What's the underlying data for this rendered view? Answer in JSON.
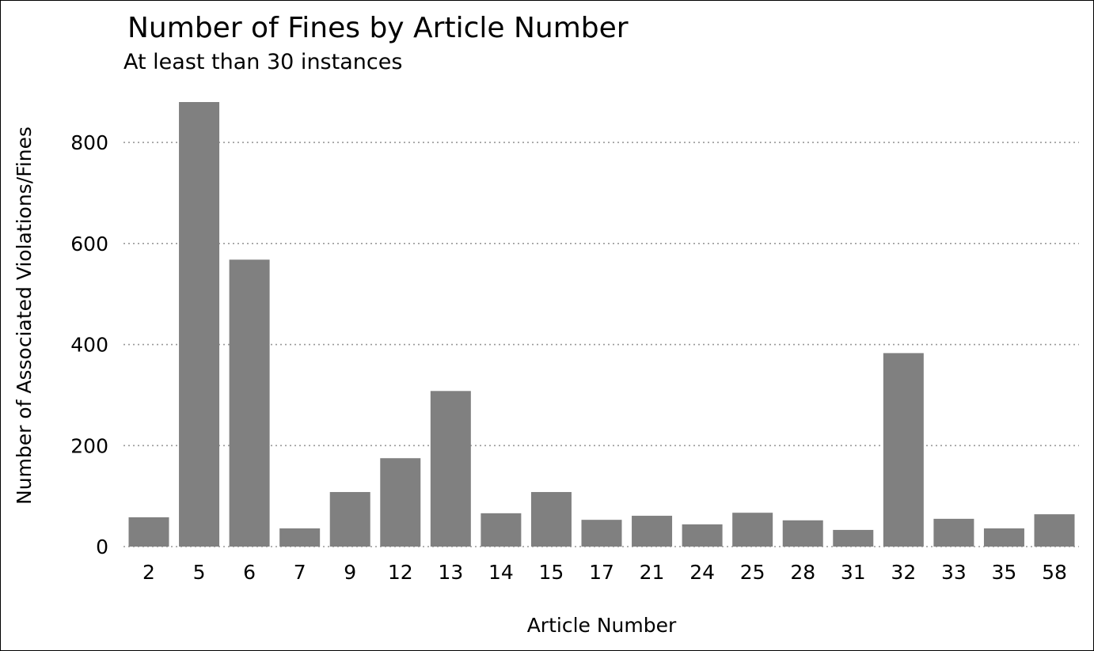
{
  "chart_data": {
    "type": "bar",
    "title": "Number of Fines by Article Number",
    "subtitle": "At least than 30 instances",
    "xlabel": "Article Number",
    "ylabel": "Number of Associated Violations/Fines",
    "categories": [
      "2",
      "5",
      "6",
      "7",
      "9",
      "12",
      "13",
      "14",
      "15",
      "17",
      "21",
      "24",
      "25",
      "28",
      "31",
      "32",
      "33",
      "35",
      "58"
    ],
    "values": [
      58,
      880,
      568,
      36,
      108,
      175,
      308,
      66,
      108,
      53,
      61,
      44,
      67,
      52,
      33,
      383,
      55,
      36,
      64
    ],
    "yticks": [
      0,
      200,
      400,
      600,
      800
    ],
    "ylim": [
      0,
      880
    ],
    "grid": true,
    "bar_color": "#808080",
    "grid_color": "#999999"
  }
}
